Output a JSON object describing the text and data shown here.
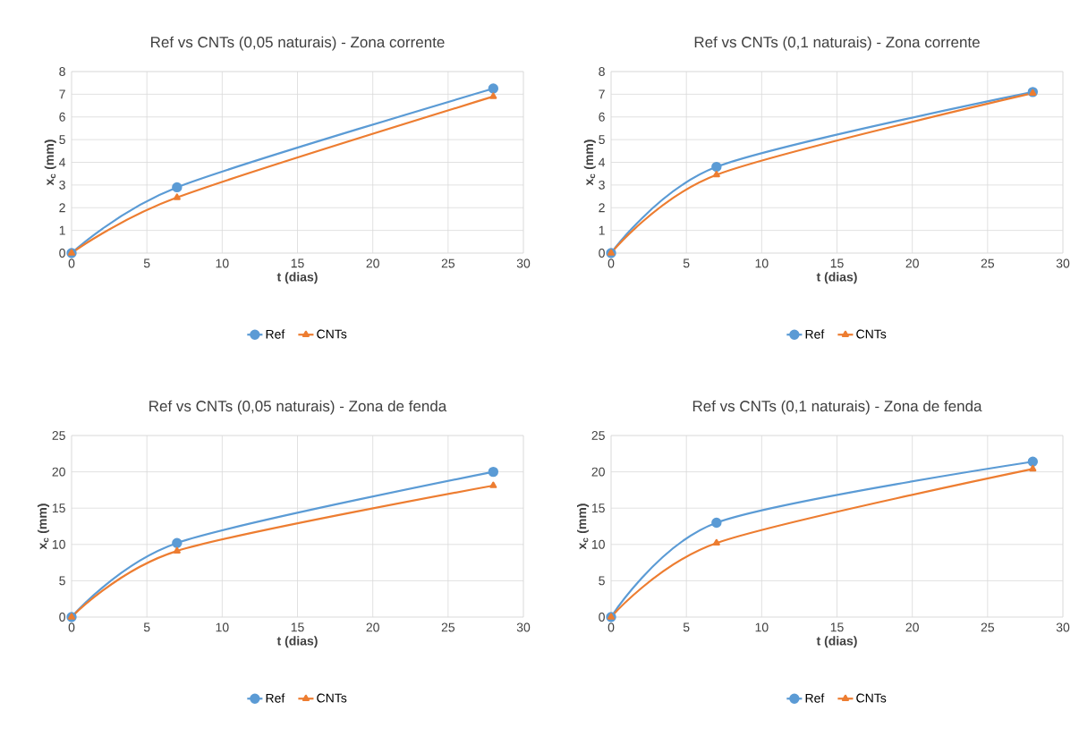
{
  "chart_data": [
    {
      "type": "line",
      "title": "Ref vs CNTs (0,05 naturais) - Zona corrente",
      "xlabel": "t (dias)",
      "ylabel": "x$_{c}$ (mm)",
      "x": [
        0,
        7,
        28
      ],
      "xlim": [
        0,
        30
      ],
      "xticks": [
        0,
        5,
        10,
        15,
        20,
        25,
        30
      ],
      "ylim": [
        0,
        8
      ],
      "yticks": [
        0,
        1,
        2,
        3,
        4,
        5,
        6,
        7,
        8
      ],
      "grid": true,
      "legend": "bottom",
      "line_style": "solid",
      "series": [
        {
          "name": "Ref",
          "color": "#5b9bd5",
          "marker": "circle",
          "values": [
            0,
            2.9,
            7.25
          ]
        },
        {
          "name": "CNTs",
          "color": "#ed7d31",
          "marker": "triangle",
          "values": [
            0,
            2.45,
            6.9
          ]
        }
      ]
    },
    {
      "type": "line",
      "title": "Ref vs CNTs (0,1 naturais) - Zona corrente",
      "xlabel": "t (dias)",
      "ylabel": "x$_{c}$ (mm)",
      "x": [
        0,
        7,
        28
      ],
      "xlim": [
        0,
        30
      ],
      "xticks": [
        0,
        5,
        10,
        15,
        20,
        25,
        30
      ],
      "ylim": [
        0,
        8
      ],
      "yticks": [
        0,
        1,
        2,
        3,
        4,
        5,
        6,
        7,
        8
      ],
      "grid": true,
      "legend": "bottom",
      "line_style": "solid",
      "series": [
        {
          "name": "Ref",
          "color": "#5b9bd5",
          "marker": "circle",
          "values": [
            0,
            3.8,
            7.1
          ]
        },
        {
          "name": "CNTs",
          "color": "#ed7d31",
          "marker": "triangle",
          "values": [
            0,
            3.45,
            7.05
          ]
        }
      ]
    },
    {
      "type": "line",
      "title": "Ref vs CNTs (0,05 naturais) - Zona de fenda",
      "xlabel": "t (dias)",
      "ylabel": "x$_{c}$ (mm)",
      "x": [
        0,
        7,
        28
      ],
      "xlim": [
        0,
        30
      ],
      "xticks": [
        0,
        5,
        10,
        15,
        20,
        25,
        30
      ],
      "ylim": [
        0,
        25
      ],
      "yticks": [
        0,
        5,
        10,
        15,
        20,
        25
      ],
      "grid": true,
      "legend": "bottom",
      "line_style": "solid",
      "series": [
        {
          "name": "Ref",
          "color": "#5b9bd5",
          "marker": "circle",
          "values": [
            0,
            10.2,
            20.0
          ]
        },
        {
          "name": "CNTs",
          "color": "#ed7d31",
          "marker": "triangle",
          "values": [
            0,
            9.1,
            18.1
          ]
        }
      ]
    },
    {
      "type": "line",
      "title": "Ref vs CNTs (0,1 naturais) - Zona de fenda",
      "xlabel": "t (dias)",
      "ylabel": "x$_{c}$ (mm)",
      "x": [
        0,
        7,
        28
      ],
      "xlim": [
        0,
        30
      ],
      "xticks": [
        0,
        5,
        10,
        15,
        20,
        25,
        30
      ],
      "ylim": [
        0,
        25
      ],
      "yticks": [
        0,
        5,
        10,
        15,
        20,
        25
      ],
      "grid": true,
      "legend": "bottom",
      "line_style": "solid",
      "series": [
        {
          "name": "Ref",
          "color": "#5b9bd5",
          "marker": "circle",
          "values": [
            0,
            13.0,
            21.4
          ]
        },
        {
          "name": "CNTs",
          "color": "#ed7d31",
          "marker": "triangle",
          "values": [
            0,
            10.2,
            20.4
          ]
        }
      ]
    }
  ]
}
